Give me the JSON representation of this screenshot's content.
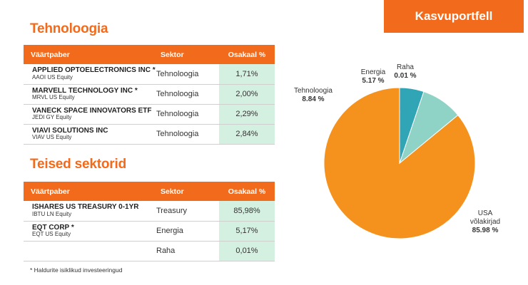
{
  "badge": "Kasvuportfell",
  "tech_section": {
    "title": "Tehnoloogia",
    "headers": {
      "security": "Väärtpaber",
      "sector": "Sektor",
      "weight": "Osakaal %"
    },
    "rows": [
      {
        "name": "APPLIED OPTOELECTRONICS INC *",
        "ticker": "AAOI US Equity",
        "sector": "Tehnoloogia",
        "weight": "1,71%"
      },
      {
        "name": "MARVELL TECHNOLOGY INC *",
        "ticker": "MRVL US Equity",
        "sector": "Tehnoloogia",
        "weight": "2,00%"
      },
      {
        "name": "VANECK SPACE INNOVATORS ETF",
        "ticker": "JEDI GY Equity",
        "sector": "Tehnoloogia",
        "weight": "2,29%"
      },
      {
        "name": "VIAVI SOLUTIONS INC",
        "ticker": "VIAV US Equity",
        "sector": "Tehnoloogia",
        "weight": "2,84%"
      }
    ]
  },
  "other_section": {
    "title": "Teised sektorid",
    "headers": {
      "security": "Väärtpaber",
      "sector": "Sektor",
      "weight": "Osakaal %"
    },
    "rows": [
      {
        "name": "ISHARES US TREASURY 0-1YR",
        "ticker": "IBTU LN Equity",
        "sector": "Treasury",
        "weight": "85,98%"
      },
      {
        "name": "EQT CORP *",
        "ticker": "EQT US Equity",
        "sector": "Energia",
        "weight": "5,17%"
      },
      {
        "name": "",
        "ticker": "",
        "sector": "Raha",
        "weight": "0,01%"
      }
    ]
  },
  "footnote": "* Haldurite isiklikud investeeringud",
  "chart_data": {
    "type": "pie",
    "slices": [
      {
        "label": [
          "USA",
          "võlakirjad"
        ],
        "value_label": "85.98 %",
        "value": 85.98,
        "color": "#f5921e"
      },
      {
        "label": [
          "Tehnoloogia"
        ],
        "value_label": "8.84 %",
        "value": 8.84,
        "color": "#8fd2c6"
      },
      {
        "label": [
          "Energia"
        ],
        "value_label": "5.17 %",
        "value": 5.17,
        "color": "#2fa5b5"
      },
      {
        "label": [
          "Raha"
        ],
        "value_label": "0.01 %",
        "value": 0.01,
        "color": "#7a2a5a"
      }
    ]
  }
}
